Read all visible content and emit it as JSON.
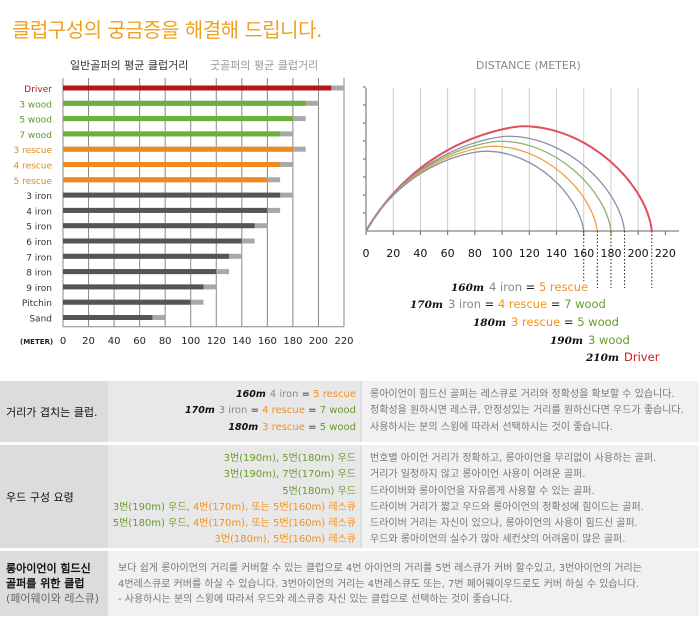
{
  "page": {
    "title": "클럽구성의 궁금증을 해결해 드립니다.",
    "legend_avg": "일반골퍼의 평균 클럽거리",
    "legend_good": "굿골퍼의 평균 클럽거리",
    "distance_title": "DISTANCE (METER)"
  },
  "colors": {
    "driver": "#b01818",
    "wood": "#6ab03a",
    "rescue": "#f08a20",
    "iron": "#555555",
    "extra": "#a8a8a8",
    "grid": "#888888"
  },
  "chart_data": [
    {
      "type": "bar",
      "orientation": "horizontal",
      "title": "",
      "xlabel": "(METER)",
      "xlim": [
        0,
        220
      ],
      "xticks": [
        0,
        20,
        40,
        60,
        80,
        100,
        120,
        140,
        160,
        180,
        200,
        220
      ],
      "categories": [
        "Driver",
        "3 wood",
        "5 wood",
        "7 wood",
        "3 rescue",
        "4 rescue",
        "5 rescue",
        "3 iron",
        "4 iron",
        "5 iron",
        "6 iron",
        "7 iron",
        "8 iron",
        "9 iron",
        "Pitchin",
        "Sand"
      ],
      "category_groups": [
        "driver",
        "wood",
        "wood",
        "wood",
        "rescue",
        "rescue",
        "rescue",
        "iron",
        "iron",
        "iron",
        "iron",
        "iron",
        "iron",
        "iron",
        "iron",
        "iron"
      ],
      "series": [
        {
          "name": "일반골퍼의 평균 클럽거리",
          "values": [
            210,
            190,
            180,
            170,
            180,
            170,
            160,
            170,
            160,
            150,
            140,
            130,
            120,
            110,
            100,
            70
          ]
        },
        {
          "name": "굿골퍼의 평균 클럽거리",
          "values": [
            220,
            200,
            190,
            180,
            190,
            180,
            170,
            180,
            170,
            160,
            150,
            140,
            130,
            120,
            110,
            80
          ]
        }
      ]
    },
    {
      "type": "line",
      "title": "DISTANCE (METER)",
      "xlim": [
        0,
        230
      ],
      "xticks": [
        0,
        20,
        40,
        60,
        80,
        100,
        120,
        140,
        160,
        180,
        200,
        220
      ],
      "series": [
        {
          "name": "Driver",
          "carry": 210,
          "color": "#e05060"
        },
        {
          "name": "3 wood",
          "carry": 190,
          "color": "#8890a8"
        },
        {
          "name": "5 wood",
          "carry": 180,
          "color": "#90b070"
        },
        {
          "name": "4 rescue",
          "carry": 170,
          "color": "#f0a040"
        },
        {
          "name": "4 iron",
          "carry": 160,
          "color": "#8890a8"
        }
      ],
      "markers": [
        160,
        170,
        180,
        190,
        210
      ]
    }
  ],
  "arc_labels": [
    {
      "m": "160m",
      "parts": [
        [
          "4 iron",
          "gray"
        ],
        [
          " = ",
          "dark"
        ],
        [
          "5 rescue",
          "orange"
        ]
      ]
    },
    {
      "m": "170m",
      "parts": [
        [
          "3 iron",
          "gray"
        ],
        [
          " = ",
          "dark"
        ],
        [
          "4 rescue",
          "orange"
        ],
        [
          " = ",
          "dark"
        ],
        [
          "7 wood",
          "green"
        ]
      ]
    },
    {
      "m": "180m",
      "parts": [
        [
          "3 rescue",
          "orange"
        ],
        [
          " = ",
          "dark"
        ],
        [
          "5 wood",
          "green"
        ]
      ]
    },
    {
      "m": "190m",
      "parts": [
        [
          "3 wood",
          "green"
        ]
      ]
    },
    {
      "m": "210m",
      "parts": [
        [
          "Driver",
          "red"
        ]
      ]
    }
  ],
  "table": {
    "overlap": {
      "header": "거리가 겹치는 클럽.",
      "desc": [
        "롱아이언이 힘드신 골퍼는 레스큐로 거리와 정확성을 확보할 수 있습니다.",
        "정확성을 원하시면 레스큐, 안정성있는 거리를 원하신다면 우드가 좋습니다.",
        "사용하시는 분의 스윙에 따라서 선택하시는 것이 좋습니다."
      ]
    },
    "wood": {
      "header": "우드 구성 요령",
      "lines": [
        [
          [
            "3번(190m), 5번(180m) 우드",
            "green"
          ]
        ],
        [
          [
            "3번(190m), 7번(170m) 우드",
            "green"
          ]
        ],
        [
          [
            "5번(180m) 우드",
            "green"
          ]
        ],
        [
          [
            "3번(190m) 우드, ",
            "green"
          ],
          [
            "4번(170m), 또는 5번(160m) 레스큐",
            "orange"
          ]
        ],
        [
          [
            "5번(180m) 우드, ",
            "green"
          ],
          [
            "4번(170m), 또는 5번(160m) 레스큐",
            "orange"
          ]
        ],
        [
          [
            "3번(180m), 5번(160m) 레스큐",
            "orange"
          ]
        ]
      ],
      "desc": [
        "번호별 아이언 거리가 정확하고, 롱아이언을 무리없이 사용하는 골퍼.",
        "거리가 일정하지 않고 롱아이언 사용이 어려운 골퍼.",
        "드라이버와 롱아이언을 자유롭게 사용할 수 있는 골퍼.",
        "드라이버 거리가 짧고 우드와 롱아이언의 정확성에 힘이드는 골퍼.",
        "드라이버 거리는 자신이 있으나, 롱아이언의 사용이 힘드신 골퍼.",
        "우드와 롱아이언의 실수가 많아 세컨샷의 어려움이 많은 골퍼."
      ]
    },
    "long": {
      "header1": "롱아이언이 힘드신",
      "header2": "골퍼를 위한 클럽",
      "header3": "(페어웨이와 레스큐)",
      "desc": [
        "보다 쉽게 롱아이언의 거리를 커버할 수 있는 클럽으로 4번 아이언의 거리를 5번 레스큐가 커버 할수있고, 3번아이언의 거리는",
        "4번레스큐로 커버를 하실 수 있습니다. 3번아이언의 거리는 4번레스큐도 또는, 7번 페어웨이우드로도 커버 하실 수 있습니다.",
        "- 사용하시는 분의 스윙에 따라서 우드와 레스큐중 자신 있는 클럽으로 선택하는 것이 좋습니다."
      ]
    }
  }
}
